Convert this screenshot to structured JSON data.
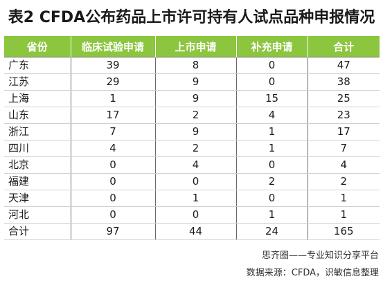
{
  "title": "表2 CFDA公布药品上市许可持有人试点品种申报情况",
  "table": {
    "headers": [
      "省份",
      "临床试验申请",
      "上市申请",
      "补充申请",
      "合计"
    ],
    "rows": [
      [
        "广东",
        "39",
        "8",
        "0",
        "47"
      ],
      [
        "江苏",
        "29",
        "9",
        "0",
        "38"
      ],
      [
        "上海",
        "1",
        "9",
        "15",
        "25"
      ],
      [
        "山东",
        "17",
        "2",
        "4",
        "23"
      ],
      [
        "浙江",
        "7",
        "9",
        "1",
        "17"
      ],
      [
        "四川",
        "4",
        "2",
        "1",
        "7"
      ],
      [
        "北京",
        "0",
        "4",
        "0",
        "4"
      ],
      [
        "福建",
        "0",
        "0",
        "2",
        "2"
      ],
      [
        "天津",
        "0",
        "1",
        "0",
        "1"
      ],
      [
        "河北",
        "0",
        "0",
        "1",
        "1"
      ],
      [
        "合计",
        "97",
        "44",
        "24",
        "165"
      ]
    ]
  },
  "footer": {
    "brand": "思齐圈——专业知识分享平台",
    "source": "数据来源：CFDA，识敏信息整理"
  },
  "colors": {
    "header_bg": "#8cc63f",
    "header_text": "#ffffff"
  }
}
